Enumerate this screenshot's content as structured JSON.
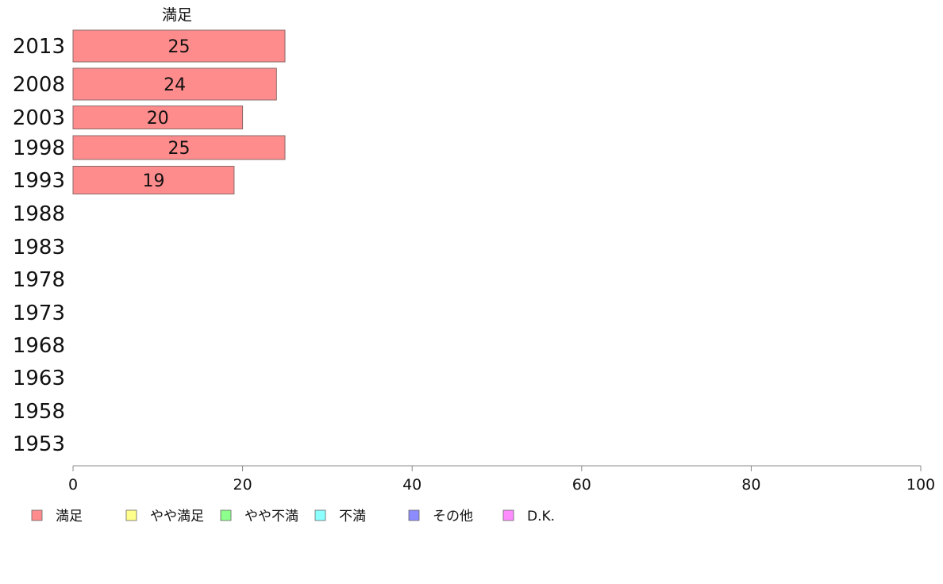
{
  "chart_data": {
    "type": "bar",
    "orientation": "horizontal",
    "stacked": true,
    "categories": [
      "2013",
      "2008",
      "2003",
      "1998",
      "1993",
      "1988",
      "1983",
      "1978",
      "1973",
      "1968",
      "1963",
      "1958",
      "1953"
    ],
    "series": [
      {
        "name": "満足",
        "color": "#ff8c8c",
        "values": [
          25,
          24,
          20,
          25,
          19,
          null,
          null,
          null,
          null,
          null,
          null,
          null,
          null
        ]
      }
    ],
    "series_title": "満足",
    "xlim": [
      0,
      100
    ],
    "xticks": [
      0,
      20,
      40,
      60,
      80,
      100
    ],
    "xtick_labels": [
      "0",
      "20",
      "40",
      "60",
      "80",
      "100"
    ],
    "data_labels": [
      "25",
      "24",
      "20",
      "25",
      "19"
    ],
    "grid": false,
    "legend_position": "bottom",
    "legend": [
      {
        "label": "満足",
        "color": "#ff8c8c"
      },
      {
        "label": "やや満足",
        "color": "#ffff8c"
      },
      {
        "label": "やや不満",
        "color": "#8cff8c"
      },
      {
        "label": "不満",
        "color": "#8cffff"
      },
      {
        "label": "その他",
        "color": "#8c8cff"
      },
      {
        "label": "D.K.",
        "color": "#ff8cff"
      }
    ]
  }
}
